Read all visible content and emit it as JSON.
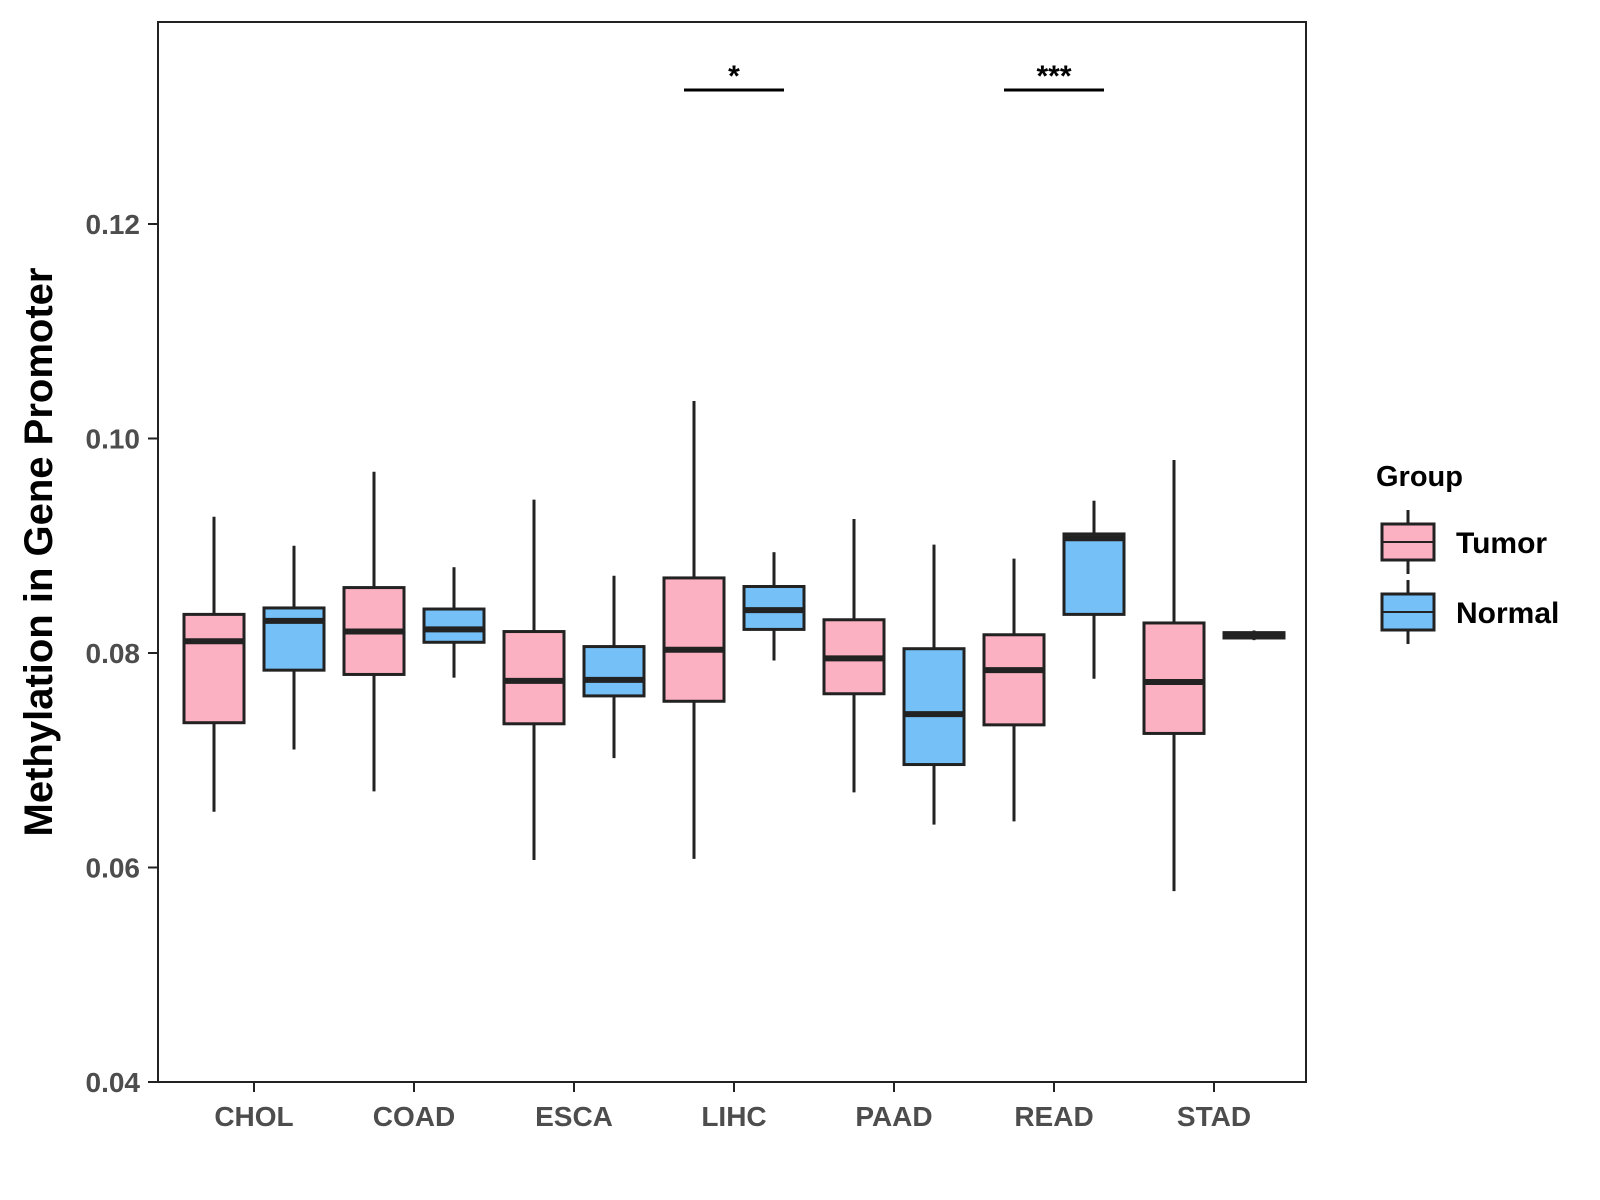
{
  "chart_data": {
    "type": "boxplot",
    "title": "",
    "xlabel": "",
    "ylabel": "Methylation in Gene Promoter",
    "ylim": [
      0.04,
      0.1375
    ],
    "yticks": [
      0.04,
      0.06,
      0.08,
      0.1,
      0.12
    ],
    "ytick_labels": [
      "0.04",
      "0.06",
      "0.08",
      "0.10",
      "0.12"
    ],
    "categories": [
      "CHOL",
      "COAD",
      "ESCA",
      "LIHC",
      "PAAD",
      "READ",
      "STAD"
    ],
    "grid": false,
    "legend": {
      "title": "Group",
      "position": "right",
      "entries": [
        {
          "name": "Tumor",
          "color": "#fbb1c1"
        },
        {
          "name": "Normal",
          "color": "#74c0f7"
        }
      ]
    },
    "series": [
      {
        "name": "Tumor",
        "color": "#fbb1c1",
        "boxes": [
          {
            "category": "CHOL",
            "min": 0.0652,
            "q1": 0.0735,
            "median": 0.0811,
            "q3": 0.0836,
            "max": 0.0927
          },
          {
            "category": "COAD",
            "min": 0.0671,
            "q1": 0.078,
            "median": 0.082,
            "q3": 0.0861,
            "max": 0.0969
          },
          {
            "category": "ESCA",
            "min": 0.0607,
            "q1": 0.0734,
            "median": 0.0774,
            "q3": 0.082,
            "max": 0.0943
          },
          {
            "category": "LIHC",
            "min": 0.0608,
            "q1": 0.0755,
            "median": 0.0803,
            "q3": 0.087,
            "max": 0.1035
          },
          {
            "category": "PAAD",
            "min": 0.067,
            "q1": 0.0762,
            "median": 0.0795,
            "q3": 0.0831,
            "max": 0.0925
          },
          {
            "category": "READ",
            "min": 0.0643,
            "q1": 0.0733,
            "median": 0.0784,
            "q3": 0.0817,
            "max": 0.0888
          },
          {
            "category": "STAD",
            "min": 0.0578,
            "q1": 0.0725,
            "median": 0.0773,
            "q3": 0.0828,
            "max": 0.098
          }
        ]
      },
      {
        "name": "Normal",
        "color": "#74c0f7",
        "boxes": [
          {
            "category": "CHOL",
            "min": 0.071,
            "q1": 0.0784,
            "median": 0.083,
            "q3": 0.0842,
            "max": 0.09
          },
          {
            "category": "COAD",
            "min": 0.0777,
            "q1": 0.081,
            "median": 0.0822,
            "q3": 0.0841,
            "max": 0.088
          },
          {
            "category": "ESCA",
            "min": 0.0702,
            "q1": 0.076,
            "median": 0.0775,
            "q3": 0.0806,
            "max": 0.0872
          },
          {
            "category": "LIHC",
            "min": 0.0793,
            "q1": 0.0822,
            "median": 0.084,
            "q3": 0.0862,
            "max": 0.0894
          },
          {
            "category": "PAAD",
            "min": 0.064,
            "q1": 0.0696,
            "median": 0.0743,
            "q3": 0.0804,
            "max": 0.0901
          },
          {
            "category": "READ",
            "min": 0.0776,
            "q1": 0.0836,
            "median": 0.0907,
            "q3": 0.0911,
            "max": 0.0942
          },
          {
            "category": "STAD",
            "min": 0.0812,
            "q1": 0.0814,
            "median": 0.0816,
            "q3": 0.0819,
            "max": 0.0821
          }
        ]
      }
    ],
    "annotations": [
      {
        "category": "LIHC",
        "label": "*",
        "y": 0.1325
      },
      {
        "category": "READ",
        "label": "***",
        "y": 0.1325
      }
    ]
  }
}
